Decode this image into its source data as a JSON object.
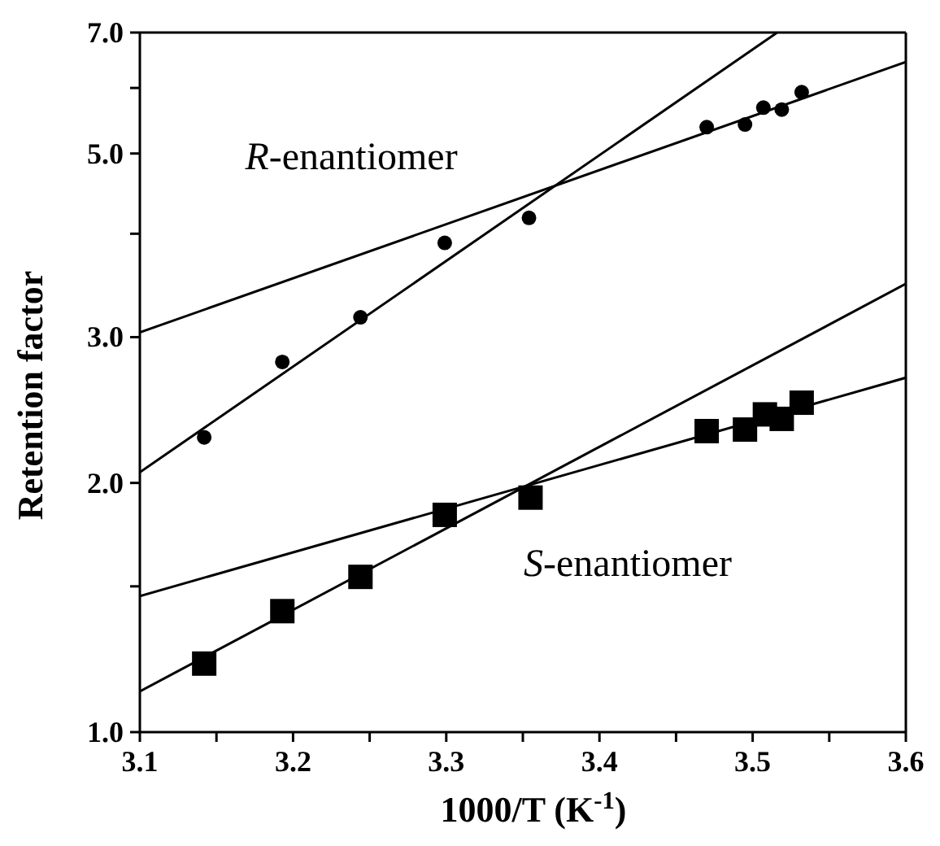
{
  "chart_data": {
    "type": "scatter",
    "xlabel": "1000/T (K$^{-1}$)",
    "ylabel": "Retention factor",
    "xlim": [
      3.1,
      3.6
    ],
    "xticks": [
      3.1,
      {
        "value": 3.15,
        "label": null
      },
      3.2,
      {
        "value": 3.25,
        "label": null
      },
      3.3,
      {
        "value": 3.35,
        "label": null
      },
      3.4,
      {
        "value": 3.45,
        "label": null
      },
      3.5,
      {
        "value": 3.55,
        "label": null
      },
      3.6
    ],
    "ylim": [
      1.0,
      7.0
    ],
    "yticks": [
      {
        "value": 1,
        "label": "1.0"
      },
      {
        "value": 1.5,
        "label": null
      },
      {
        "value": 2,
        "label": "2.0"
      },
      {
        "value": 3,
        "label": "3.0"
      },
      {
        "value": 4,
        "label": null
      },
      {
        "value": 5,
        "label": "5.0"
      },
      {
        "value": 6,
        "label": null
      },
      {
        "value": 7,
        "label": "7.0"
      }
    ],
    "log": "y",
    "grid": false,
    "legend": false,
    "series": [
      {
        "type": "scatter",
        "marker": "circle",
        "color": "#000000",
        "x": [
          3.142,
          3.193,
          3.244,
          3.299,
          3.354,
          3.47,
          3.495,
          3.507,
          3.519,
          3.532
        ],
        "values": [
          2.27,
          2.8,
          3.17,
          3.9,
          4.18,
          5.38,
          5.42,
          5.68,
          5.65,
          5.93
        ]
      },
      {
        "type": "scatter",
        "marker": "square",
        "color": "#000000",
        "x": [
          3.142,
          3.193,
          3.244,
          3.299,
          3.355,
          3.47,
          3.495,
          3.508,
          3.519,
          3.532
        ],
        "values": [
          1.21,
          1.4,
          1.54,
          1.83,
          1.92,
          2.31,
          2.32,
          2.42,
          2.39,
          2.5
        ]
      },
      {
        "type": "line",
        "marker": "none",
        "color": "#000000",
        "x": [
          3.1,
          3.516
        ],
        "values": [
          2.06,
          7.0
        ]
      },
      {
        "type": "line",
        "marker": "none",
        "color": "#000000",
        "x": [
          3.1,
          3.6
        ],
        "values": [
          3.04,
          6.45
        ]
      },
      {
        "type": "line",
        "marker": "none",
        "color": "#000000",
        "x": [
          3.1,
          3.6
        ],
        "values": [
          1.12,
          3.48
        ]
      },
      {
        "type": "line",
        "marker": "none",
        "color": "#000000",
        "x": [
          3.1,
          3.6
        ],
        "values": [
          1.46,
          2.68
        ]
      }
    ],
    "annotations": [
      "R-enantiomer",
      "S-enantiomer"
    ]
  }
}
